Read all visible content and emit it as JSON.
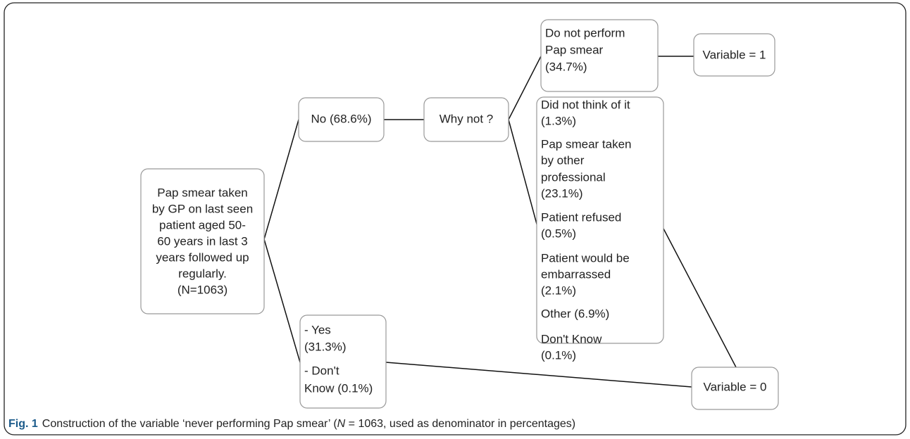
{
  "nodes": [
    {
      "id": "root",
      "lines": [
        "Pap smear taken",
        "by GP on last seen",
        "patient aged 50-",
        "60 years in last 3",
        "years followed up",
        "regularly.",
        "(N=1063)"
      ]
    },
    {
      "id": "no",
      "lines": [
        "No (68.6%)"
      ]
    },
    {
      "id": "why",
      "lines": [
        "Why not ?"
      ]
    },
    {
      "id": "not-perform",
      "lines": [
        "Do not perform",
        "Pap smear",
        "(34.7%)"
      ]
    },
    {
      "id": "var1",
      "lines": [
        "Variable = 1"
      ]
    },
    {
      "id": "reasons",
      "lines": [
        "Did not think of it",
        "(1.3%)",
        "Pap smear taken",
        "by other",
        "professional",
        "(23.1%)",
        "Patient refused",
        "(0.5%)",
        "Patient would be",
        "embarrassed",
        "(2.1%)",
        "Other (6.9%)",
        "Don't Know",
        "(0.1%)"
      ]
    },
    {
      "id": "yes",
      "lines": [
        "- Yes",
        "(31.3%)",
        "- Don't",
        "Know (0.1%)"
      ]
    },
    {
      "id": "var0",
      "lines": [
        "Variable = 0"
      ]
    }
  ],
  "caption": {
    "label": "Fig. 1",
    "before": "Construction of the variable ‘never performing Pap smear’ (",
    "italic": "N",
    "after": " = 1063, used as denominator in percentages)"
  }
}
